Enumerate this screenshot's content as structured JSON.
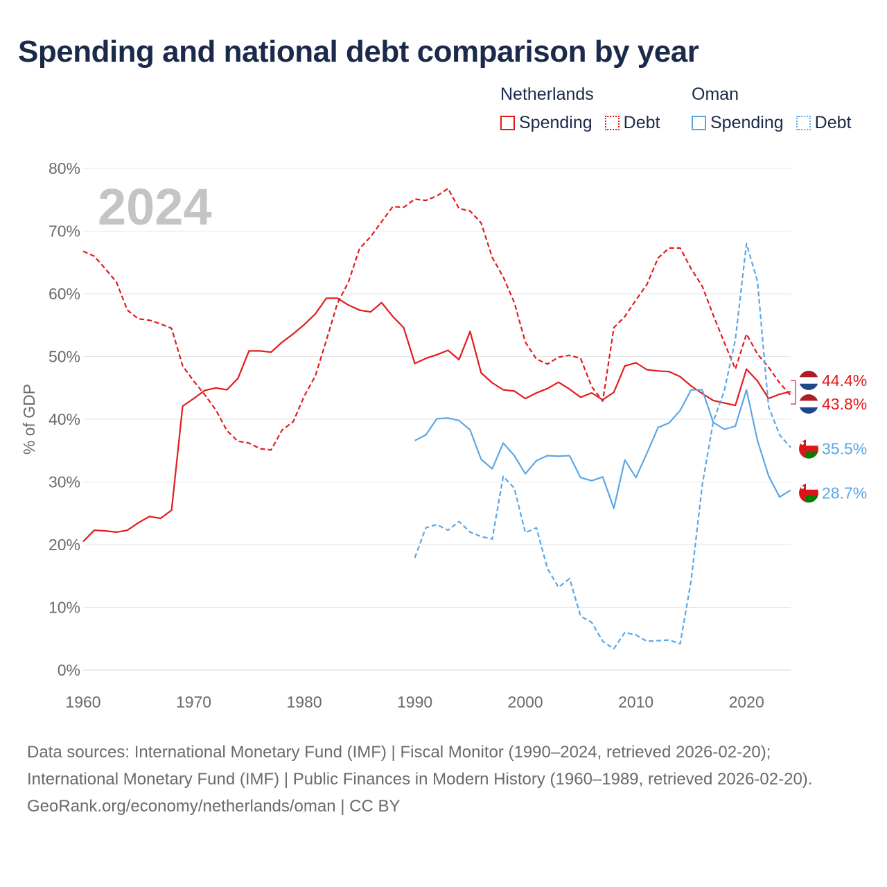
{
  "title": "Spending and national debt comparison by year",
  "legend": {
    "groups": [
      {
        "country": "Netherlands",
        "spending_label": "Spending",
        "debt_label": "Debt",
        "color": "#e31a1c"
      },
      {
        "country": "Oman",
        "spending_label": "Spending",
        "debt_label": "Debt",
        "color": "#5aa7e6"
      }
    ]
  },
  "footer": {
    "sources": "Data sources: International Monetary Fund (IMF) | Fiscal Monitor (1990–2024, retrieved 2026-02-20); International Monetary Fund (IMF) | Public Finances in Modern History (1960–1989, retrieved 2026-02-20).",
    "credit": "GeoRank.org/economy/netherlands/oman | CC BY"
  },
  "chart_data": {
    "type": "line",
    "title": "Spending and national debt comparison by year",
    "year_watermark": "2024",
    "xlabel": "",
    "ylabel": "% of GDP",
    "xlim": [
      1960,
      2024
    ],
    "ylim": [
      0,
      80
    ],
    "xticks": [
      1960,
      1970,
      1980,
      1990,
      2000,
      2010,
      2020
    ],
    "yticks": [
      0,
      10,
      20,
      30,
      40,
      50,
      60,
      70,
      80
    ],
    "ytick_suffix": "%",
    "grid": true,
    "series": [
      {
        "name": "Netherlands Spending",
        "country": "Netherlands",
        "metric": "Spending",
        "color": "#e31a1c",
        "dash": false,
        "start": 1960,
        "end_label": "44.4%",
        "values": [
          20.5,
          22.3,
          22.2,
          22.0,
          22.3,
          23.5,
          24.5,
          24.2,
          25.5,
          42.1,
          43.3,
          44.6,
          45.0,
          44.7,
          46.5,
          50.9,
          50.9,
          50.7,
          52.3,
          53.6,
          55.1,
          56.8,
          59.3,
          59.3,
          58.2,
          57.4,
          57.1,
          58.6,
          56.4,
          54.6,
          48.9,
          49.7,
          50.3,
          51.0,
          49.5,
          54.0,
          47.4,
          45.8,
          44.7,
          44.5,
          43.3,
          44.2,
          44.9,
          45.9,
          44.8,
          43.5,
          44.2,
          43.1,
          44.3,
          48.5,
          49.0,
          47.9,
          47.7,
          47.6,
          46.8,
          45.3,
          44.1,
          43.0,
          42.6,
          42.2,
          48.0,
          46.1,
          43.3,
          44.0,
          44.4
        ]
      },
      {
        "name": "Netherlands Debt",
        "country": "Netherlands",
        "metric": "Debt",
        "color": "#e31a1c",
        "dash": true,
        "start": 1960,
        "end_label": "43.8%",
        "values": [
          66.8,
          66.0,
          64.0,
          61.9,
          57.4,
          56.0,
          55.8,
          55.2,
          54.5,
          48.5,
          46.1,
          43.9,
          41.5,
          38.2,
          36.5,
          36.2,
          35.3,
          35.1,
          38.3,
          39.6,
          43.7,
          46.9,
          52.6,
          58.5,
          61.9,
          67.2,
          69.1,
          71.5,
          73.9,
          73.8,
          75.1,
          74.9,
          75.6,
          76.8,
          73.6,
          73.2,
          71.3,
          65.8,
          62.7,
          58.6,
          52.3,
          49.6,
          48.8,
          49.9,
          50.2,
          49.7,
          45.2,
          42.9,
          54.6,
          56.4,
          59.0,
          61.5,
          65.7,
          67.3,
          67.3,
          64.0,
          61.2,
          56.6,
          52.2,
          48.0,
          53.6,
          50.4,
          48.3,
          45.8,
          43.8
        ]
      },
      {
        "name": "Oman Spending",
        "country": "Oman",
        "metric": "Spending",
        "color": "#5aa7e6",
        "dash": false,
        "start": 1990,
        "end_label": "28.7%",
        "values": [
          36.6,
          37.5,
          40.1,
          40.2,
          39.8,
          38.3,
          33.6,
          32.1,
          36.2,
          34.2,
          31.3,
          33.4,
          34.2,
          34.1,
          34.2,
          30.7,
          30.2,
          30.8,
          25.8,
          33.5,
          30.7,
          34.6,
          38.7,
          39.4,
          41.4,
          44.7,
          44.7,
          39.5,
          38.4,
          38.9,
          44.7,
          36.6,
          31.0,
          27.6,
          28.7
        ]
      },
      {
        "name": "Oman Debt",
        "country": "Oman",
        "metric": "Debt",
        "color": "#5aa7e6",
        "dash": true,
        "start": 1990,
        "end_label": "35.5%",
        "values": [
          17.9,
          22.7,
          23.2,
          22.3,
          23.7,
          22.0,
          21.3,
          20.9,
          30.9,
          29.0,
          21.9,
          22.7,
          16.2,
          13.2,
          14.6,
          8.6,
          7.6,
          4.6,
          3.4,
          6.0,
          5.6,
          4.6,
          4.7,
          4.8,
          4.2,
          14.3,
          29.5,
          39.6,
          44.6,
          52.7,
          68.0,
          62.0,
          42.0,
          37.5,
          35.5
        ]
      }
    ]
  }
}
